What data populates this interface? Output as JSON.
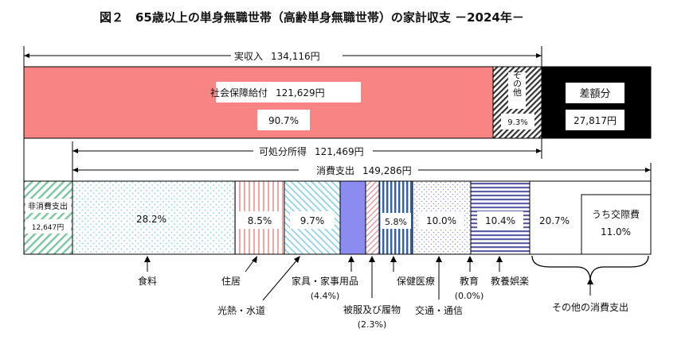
{
  "chart_data": {
    "type": "bar",
    "title": "図２　65歳以上の単身無職世帯（高齢単身無職世帯）の家計収支 －2024年－",
    "unit": "円",
    "income": {
      "label": "実収入",
      "total": "134,116円",
      "segments": [
        {
          "key": "social_security",
          "label": "社会保障給付",
          "amount": "121,629円",
          "percent": "90.7%",
          "value": 90.7
        },
        {
          "key": "other",
          "label": "その他",
          "percent": "9.3%",
          "value": 9.3
        }
      ],
      "deficit": {
        "label": "差額分",
        "amount": "27,817円"
      }
    },
    "disposable_income": {
      "label": "可処分所得",
      "amount": "121,469円"
    },
    "consumption": {
      "label": "消費支出",
      "amount": "149,286円"
    },
    "non_consumption": {
      "label": "非消費支出",
      "amount": "12,647円"
    },
    "expenditure_items": [
      {
        "key": "food",
        "label": "食料",
        "percent": "28.2%",
        "value": 28.2
      },
      {
        "key": "housing",
        "label": "住居",
        "percent": "8.5%",
        "value": 8.5
      },
      {
        "key": "utilities",
        "label": "光熱・水道",
        "percent": "9.7%",
        "value": 9.7
      },
      {
        "key": "furniture",
        "label": "家具・家事用品",
        "percent": "(4.4%)",
        "value": 4.4
      },
      {
        "key": "clothing",
        "label": "被服及び履物",
        "percent": "(2.3%)",
        "value": 2.3
      },
      {
        "key": "medical",
        "label": "保健医療",
        "percent": "5.8%",
        "value": 5.8
      },
      {
        "key": "transport",
        "label": "交通・通信",
        "percent": "10.0%",
        "value": 10.0
      },
      {
        "key": "education",
        "label": "教育",
        "percent": "(0.0%)",
        "value": 0.0
      },
      {
        "key": "recreation",
        "label": "教養娯楽",
        "percent": "10.4%",
        "value": 10.4
      },
      {
        "key": "other_consumption",
        "label": "その他の消費支出",
        "percent": "20.7%",
        "value": 20.7
      }
    ],
    "social_expenses": {
      "label": "うち交際費",
      "percent": "11.0%",
      "value": 11.0
    }
  }
}
